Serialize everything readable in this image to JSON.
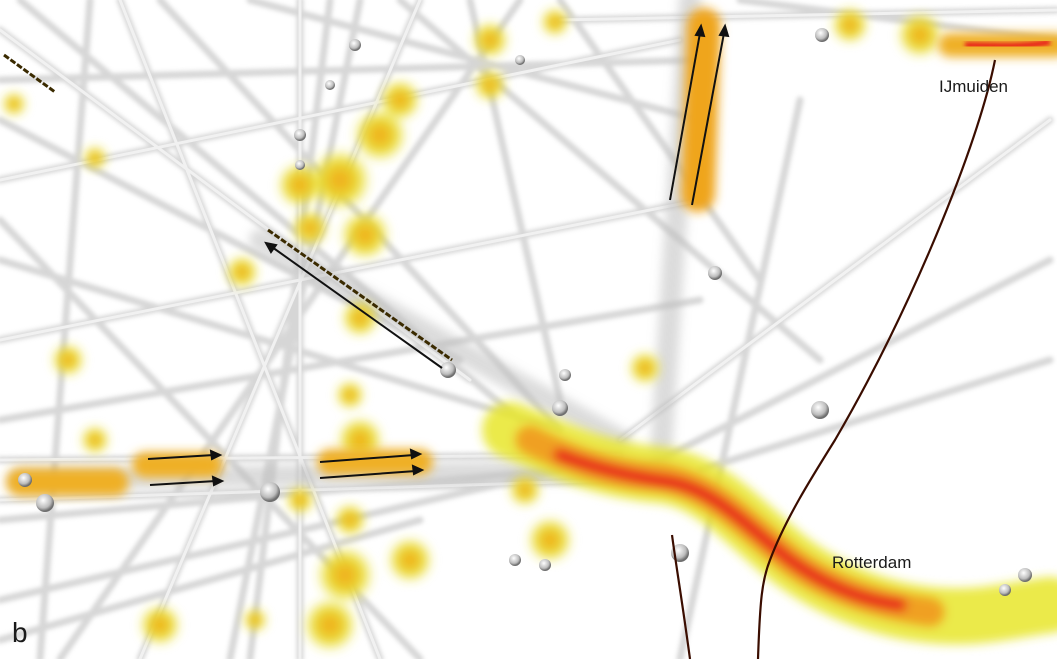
{
  "map": {
    "labels": {
      "ijmuiden": "IJmuiden",
      "rotterdam": "Rotterdam"
    },
    "panel_letter": "b",
    "colors": {
      "background": "#ffffff",
      "track": "#cfcfcf",
      "track_highlight": "#f2f2f2",
      "density_low": "#e8e62a",
      "density_mid": "#f0a020",
      "density_high": "#e8201a",
      "coastline": "#3a0d00",
      "arrow": "#111111"
    },
    "legend_icons": [
      "direction-arrow-icon"
    ]
  }
}
